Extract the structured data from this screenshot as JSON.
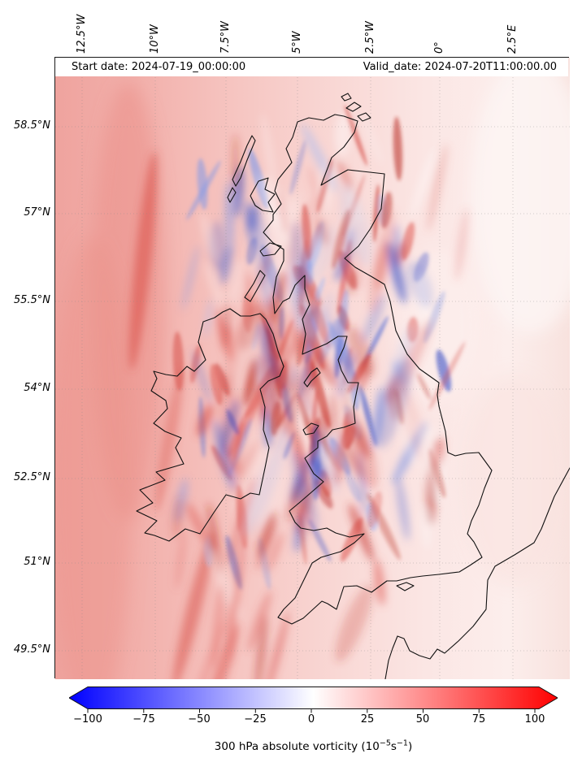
{
  "figure": {
    "title_left": "Start date: 2024-07-19_00:00:00",
    "title_right": "Valid_date: 2024-07-20T11:00:00.00"
  },
  "axes": {
    "lon_labels": [
      "12.5°W",
      "10°W",
      "7.5°W",
      "5°W",
      "2.5°W",
      "0°",
      "2.5°E"
    ],
    "lat_labels": [
      "58.5°N",
      "57°N",
      "55.5°N",
      "54°N",
      "52.5°N",
      "51°N",
      "49.5°N"
    ]
  },
  "colorbar": {
    "tick_labels": [
      "−100",
      "−75",
      "−50",
      "−25",
      "0",
      "25",
      "50",
      "75",
      "100"
    ],
    "color_left": "#0000ff",
    "color_mid": "#ffffff",
    "color_right": "#ff0000"
  },
  "caption": {
    "pre": "300 hPa absolute vorticity (10",
    "sup1": "−5",
    "mid": "s",
    "sup2": "−1",
    "post": ")"
  },
  "chart_data": {
    "type": "heatmap",
    "variable": "300 hPa absolute vorticity",
    "units": "10^-5 s^-1",
    "start_date": "2024-07-19_00:00:00",
    "valid_date": "2024-07-20T11:00:00.00",
    "region": "British Isles, Ireland and surrounding seas with coastlines overlaid",
    "colormap": "blue-white-red (bwr), arrow extensions at both ends",
    "colorbar_range": [
      -100,
      100
    ],
    "colorbar_ticks": [
      -100,
      -75,
      -50,
      -25,
      0,
      25,
      50,
      75,
      100
    ],
    "x_axis": {
      "label_position": "top",
      "rotation_deg": 90,
      "ticks": [
        "12.5°W",
        "10°W",
        "7.5°W",
        "5°W",
        "2.5°W",
        "0°",
        "2.5°E"
      ]
    },
    "y_axis": {
      "label_position": "left",
      "ticks": [
        "58.5°N",
        "57°N",
        "55.5°N",
        "54°N",
        "52.5°N",
        "51°N",
        "49.5°N"
      ]
    },
    "grid": "faint dotted graticule at labelled meridians/parallels",
    "field_summary": "Mostly weak positive vorticity (pale red, roughly +10 to +40) over the whole domain; elongated strong positive (red) filaments west of Ireland and in a band from SW Ireland toward SW England; dense fine-scale alternating positive/negative (red/blue) filaments over Scotland, the Irish Sea, England and Wales; weakest, near-zero values (near white) over the eastern North Sea and English Channel."
  }
}
